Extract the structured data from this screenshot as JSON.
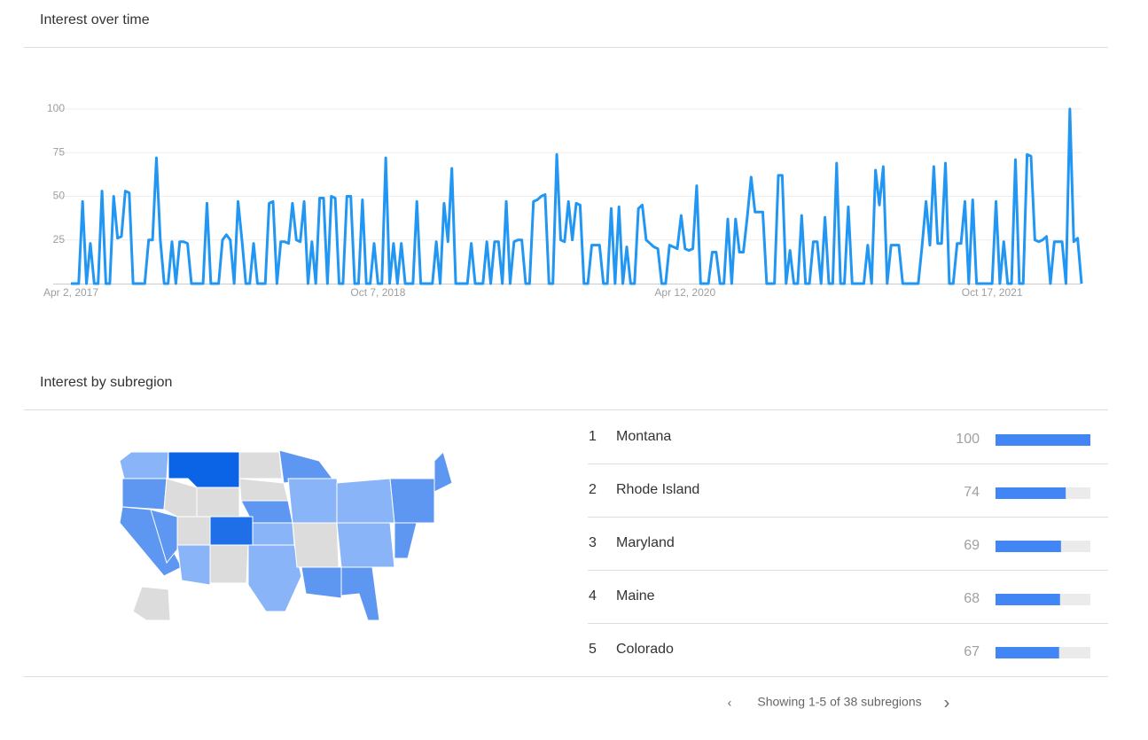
{
  "chart_data": {
    "type": "line",
    "title": "Interest over time",
    "color": "#2196f3",
    "grid": true,
    "ylim": [
      0,
      100
    ],
    "yticks": [
      25,
      50,
      75,
      100
    ],
    "categories": [
      "Apr 2, 2017",
      null,
      null,
      null,
      null,
      null,
      null,
      null,
      null,
      null,
      null,
      null,
      null,
      null,
      null,
      null,
      null,
      null,
      null,
      null,
      null,
      null,
      null,
      null,
      null,
      null,
      null,
      null,
      null,
      null,
      null,
      null,
      null,
      null,
      null,
      null,
      null,
      null,
      null,
      null,
      null,
      null,
      null,
      null,
      null,
      null,
      null,
      null,
      null,
      null,
      null,
      null,
      null,
      null,
      null,
      null,
      null,
      null,
      null,
      null,
      null,
      null,
      null,
      null,
      null,
      null,
      null,
      null,
      null,
      null,
      null,
      null,
      null,
      null,
      null,
      null,
      null,
      null,
      null,
      "Oct 7, 2018",
      null,
      null,
      null,
      null,
      null,
      null,
      null,
      null,
      null,
      null,
      null,
      null,
      null,
      null,
      null,
      null,
      null,
      null,
      null,
      null,
      null,
      null,
      null,
      null,
      null,
      null,
      null,
      null,
      null,
      null,
      null,
      null,
      null,
      null,
      null,
      null,
      null,
      null,
      null,
      null,
      null,
      null,
      null,
      null,
      null,
      null,
      null,
      null,
      null,
      null,
      null,
      null,
      null,
      null,
      null,
      null,
      null,
      null,
      null,
      null,
      null,
      null,
      null,
      null,
      null,
      null,
      null,
      null,
      null,
      null,
      null,
      null,
      null,
      null,
      null,
      null,
      null,
      null,
      "Apr 12, 2020",
      null,
      null,
      null,
      null,
      null,
      null,
      null,
      null,
      null,
      null,
      null,
      null,
      null,
      null,
      null,
      null,
      null,
      null,
      null,
      null,
      null,
      null,
      null,
      null,
      null,
      null,
      null,
      null,
      null,
      null,
      null,
      null,
      null,
      null,
      null,
      null,
      null,
      null,
      null,
      null,
      null,
      null,
      null,
      null,
      null,
      null,
      null,
      null,
      null,
      null,
      null,
      null,
      null,
      null,
      null,
      null,
      null,
      null,
      null,
      null,
      null,
      null,
      null,
      null,
      null,
      null,
      null,
      null,
      null,
      null,
      null,
      null,
      null,
      null,
      null,
      null,
      null,
      null,
      "Oct 17, 2021",
      null,
      null,
      null,
      null,
      null,
      null,
      null,
      null,
      null,
      null,
      null,
      null,
      null,
      null,
      null,
      null,
      null,
      null,
      null,
      null,
      null,
      null,
      null
    ],
    "values": [
      0,
      0,
      0,
      47,
      0,
      23,
      0,
      0,
      53,
      0,
      0,
      50,
      26,
      27,
      53,
      52,
      0,
      0,
      0,
      0,
      25,
      25,
      72,
      25,
      0,
      0,
      24,
      0,
      24,
      24,
      23,
      0,
      0,
      0,
      0,
      46,
      0,
      0,
      0,
      25,
      28,
      25,
      0,
      47,
      25,
      0,
      0,
      23,
      0,
      0,
      0,
      46,
      47,
      0,
      24,
      24,
      23,
      46,
      25,
      24,
      47,
      0,
      24,
      0,
      49,
      49,
      0,
      50,
      49,
      0,
      0,
      50,
      50,
      0,
      0,
      48,
      0,
      0,
      23,
      0,
      0,
      72,
      0,
      23,
      0,
      23,
      0,
      0,
      0,
      47,
      0,
      0,
      0,
      0,
      24,
      0,
      46,
      24,
      66,
      0,
      0,
      0,
      0,
      23,
      0,
      0,
      0,
      24,
      0,
      24,
      24,
      0,
      47,
      0,
      24,
      25,
      25,
      0,
      0,
      47,
      48,
      50,
      51,
      0,
      0,
      74,
      25,
      24,
      47,
      25,
      46,
      45,
      0,
      0,
      22,
      22,
      22,
      0,
      0,
      43,
      0,
      44,
      0,
      21,
      0,
      0,
      43,
      45,
      25,
      23,
      21,
      20,
      0,
      0,
      22,
      21,
      20,
      39,
      20,
      19,
      20,
      56,
      0,
      0,
      0,
      18,
      18,
      0,
      0,
      37,
      0,
      37,
      18,
      18,
      38,
      61,
      41,
      41,
      41,
      0,
      0,
      0,
      62,
      62,
      0,
      19,
      0,
      0,
      39,
      0,
      0,
      24,
      24,
      0,
      38,
      0,
      0,
      69,
      0,
      0,
      44,
      0,
      0,
      0,
      0,
      22,
      0,
      65,
      45,
      67,
      0,
      22,
      22,
      22,
      0,
      0,
      0,
      0,
      0,
      22,
      47,
      22,
      67,
      23,
      23,
      69,
      0,
      0,
      23,
      23,
      47,
      0,
      48,
      0,
      0,
      0,
      0,
      0,
      47,
      0,
      24,
      0,
      0,
      71,
      0,
      0,
      74,
      73,
      25,
      24,
      25,
      27,
      0,
      24,
      24,
      24,
      0,
      100,
      24,
      26,
      0
    ]
  },
  "subregions": {
    "title": "Interest by subregion",
    "bar_color": "#4285f4",
    "rows": [
      {
        "rank": 1,
        "name": "Montana",
        "value": 100
      },
      {
        "rank": 2,
        "name": "Rhode Island",
        "value": 74
      },
      {
        "rank": 3,
        "name": "Maryland",
        "value": 69
      },
      {
        "rank": 4,
        "name": "Maine",
        "value": 68
      },
      {
        "rank": 5,
        "name": "Colorado",
        "value": 67
      }
    ],
    "pagination": "Showing 1-5 of 38 subregions"
  }
}
